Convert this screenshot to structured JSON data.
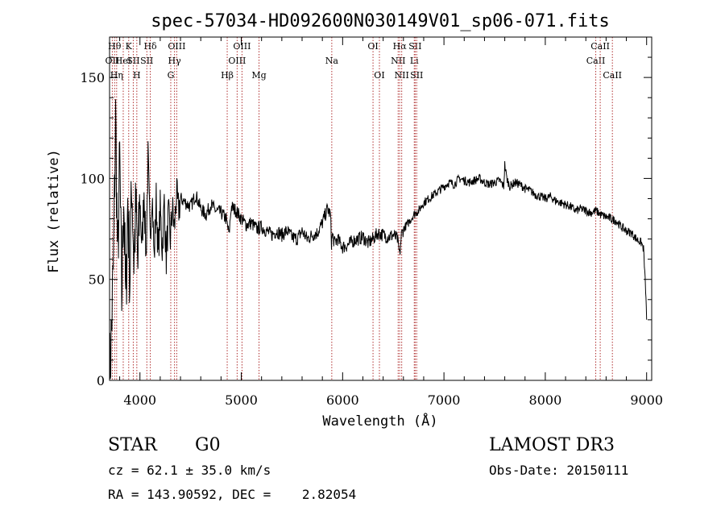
{
  "chart_data": {
    "type": "line",
    "title": "spec-57034-HD092600N030149V01_sp06-071.fits",
    "xlabel": "Wavelength (Å)",
    "ylabel": "Flux (relative)",
    "xlim": [
      3700,
      9050
    ],
    "ylim": [
      0,
      170
    ],
    "xticks": [
      4000,
      5000,
      6000,
      7000,
      8000,
      9000
    ],
    "yticks": [
      0,
      50,
      100,
      150
    ],
    "grid": false,
    "line_color": "#000000",
    "marker_color": "#b03030",
    "series": [
      {
        "name": "flux",
        "x": [
          3700,
          3720,
          3740,
          3760,
          3780,
          3800,
          3820,
          3840,
          3860,
          3880,
          3900,
          3920,
          3940,
          3960,
          3980,
          4000,
          4020,
          4040,
          4060,
          4080,
          4100,
          4120,
          4140,
          4160,
          4180,
          4200,
          4220,
          4240,
          4260,
          4280,
          4300,
          4320,
          4340,
          4360,
          4380,
          4400,
          4450,
          4500,
          4550,
          4600,
          4650,
          4700,
          4750,
          4800,
          4850,
          4880,
          4900,
          4950,
          5000,
          5050,
          5100,
          5150,
          5200,
          5250,
          5300,
          5350,
          5400,
          5450,
          5500,
          5550,
          5600,
          5650,
          5700,
          5750,
          5800,
          5850,
          5880,
          5890,
          5900,
          5920,
          5950,
          6000,
          6050,
          6100,
          6150,
          6200,
          6250,
          6300,
          6350,
          6400,
          6450,
          6500,
          6540,
          6563,
          6580,
          6600,
          6650,
          6700,
          6750,
          6800,
          6850,
          6900,
          6950,
          7000,
          7050,
          7100,
          7150,
          7200,
          7250,
          7300,
          7350,
          7400,
          7450,
          7500,
          7550,
          7590,
          7600,
          7620,
          7650,
          7700,
          7750,
          7800,
          7850,
          7900,
          7950,
          8000,
          8050,
          8100,
          8150,
          8200,
          8250,
          8300,
          8350,
          8400,
          8450,
          8500,
          8550,
          8600,
          8650,
          8700,
          8750,
          8800,
          8850,
          8900,
          8950,
          8970,
          8990,
          9000
        ],
        "values": [
          0,
          25,
          60,
          130,
          55,
          110,
          40,
          95,
          35,
          90,
          50,
          100,
          60,
          85,
          55,
          90,
          65,
          95,
          60,
          110,
          70,
          95,
          60,
          90,
          62,
          85,
          65,
          88,
          60,
          82,
          70,
          85,
          75,
          92,
          84,
          90,
          88,
          86,
          92,
          85,
          82,
          87,
          84,
          83,
          80,
          72,
          86,
          84,
          80,
          77,
          78,
          75,
          76,
          74,
          72,
          74,
          72,
          74,
          71,
          70,
          74,
          70,
          72,
          73,
          78,
          85,
          82,
          68,
          72,
          68,
          70,
          66,
          67,
          69,
          70,
          71,
          68,
          70,
          73,
          72,
          71,
          72,
          70,
          62,
          72,
          75,
          78,
          82,
          84,
          88,
          90,
          92,
          94,
          96,
          98,
          97,
          100,
          99,
          98,
          99,
          100,
          98,
          97,
          98,
          99,
          96,
          107,
          100,
          96,
          98,
          97,
          95,
          94,
          92,
          91,
          90,
          91,
          89,
          88,
          87,
          86,
          84,
          85,
          84,
          83,
          84,
          82,
          81,
          80,
          79,
          76,
          74,
          73,
          70,
          68,
          65,
          45,
          30
        ]
      }
    ],
    "line_markers": [
      {
        "x": 3727,
        "labels": [
          "OII"
        ],
        "row": 2
      },
      {
        "x": 3750,
        "labels": [
          "Hθ"
        ],
        "row": 1
      },
      {
        "x": 3770,
        "labels": [
          "Hη"
        ],
        "row": 3
      },
      {
        "x": 3835,
        "labels": [
          "HeI"
        ],
        "row": 2
      },
      {
        "x": 3889,
        "labels": [
          "K"
        ],
        "row": 1
      },
      {
        "x": 3934,
        "labels": [
          "SII"
        ],
        "row": 2
      },
      {
        "x": 3969,
        "labels": [
          "H"
        ],
        "row": 3
      },
      {
        "x": 4102,
        "labels": [
          "Hδ"
        ],
        "row": 1
      },
      {
        "x": 4068,
        "labels": [
          "SII"
        ],
        "row": 2
      },
      {
        "x": 4304,
        "labels": [
          "G"
        ],
        "row": 3
      },
      {
        "x": 4341,
        "labels": [
          "Hγ"
        ],
        "row": 2
      },
      {
        "x": 4363,
        "labels": [
          "OIII"
        ],
        "row": 1
      },
      {
        "x": 4861,
        "labels": [
          "Hβ"
        ],
        "row": 3
      },
      {
        "x": 4959,
        "labels": [
          "OIII"
        ],
        "row": 2
      },
      {
        "x": 5007,
        "labels": [
          "OIII"
        ],
        "row": 1
      },
      {
        "x": 5175,
        "labels": [
          "Mg"
        ],
        "row": 3
      },
      {
        "x": 5893,
        "labels": [
          "Na"
        ],
        "row": 2
      },
      {
        "x": 6300,
        "labels": [
          "OI"
        ],
        "row": 1
      },
      {
        "x": 6363,
        "labels": [
          "OI"
        ],
        "row": 3
      },
      {
        "x": 6548,
        "labels": [
          "NII"
        ],
        "row": 2
      },
      {
        "x": 6563,
        "labels": [
          "Hα"
        ],
        "row": 1
      },
      {
        "x": 6583,
        "labels": [
          "NII"
        ],
        "row": 3
      },
      {
        "x": 6707,
        "labels": [
          "Li"
        ],
        "row": 2
      },
      {
        "x": 6716,
        "labels": [
          "SII"
        ],
        "row": 1
      },
      {
        "x": 6731,
        "labels": [
          "SII"
        ],
        "row": 3
      },
      {
        "x": 8498,
        "labels": [
          "CaII"
        ],
        "row": 2
      },
      {
        "x": 8542,
        "labels": [
          "CaII"
        ],
        "row": 1
      },
      {
        "x": 8662,
        "labels": [
          "CaII"
        ],
        "row": 3
      }
    ]
  },
  "info": {
    "class": "STAR",
    "subclass": "G0",
    "survey": "LAMOST DR3",
    "cz": "cz = 62.1 ± 35.0 km/s",
    "obs_date": "Obs-Date: 20150111",
    "radec": "RA = 143.90592, DEC =    2.82054"
  }
}
